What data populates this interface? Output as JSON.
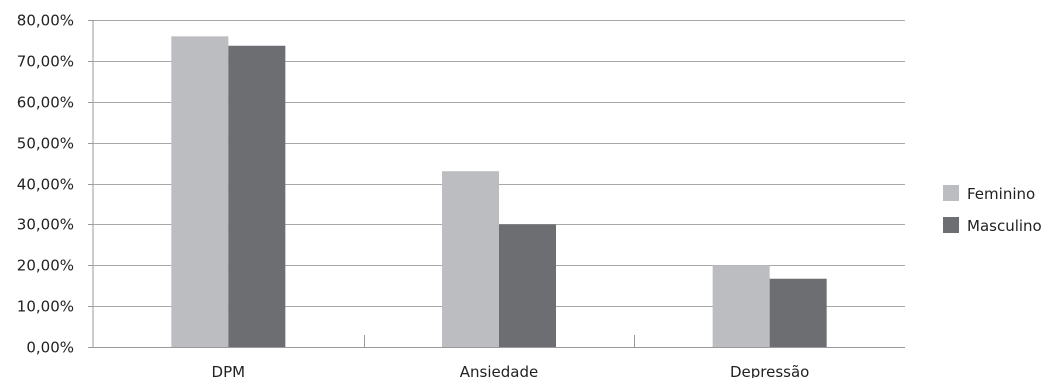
{
  "chart_data": {
    "type": "bar",
    "title": "",
    "xlabel": "",
    "ylabel": "",
    "categories": [
      "DPM",
      "Ansiedade",
      "Depressão"
    ],
    "series": [
      {
        "name": "Feminino",
        "color": "#bcbdc1",
        "values": [
          76.0,
          43.0,
          20.0
        ]
      },
      {
        "name": "Masculino",
        "color": "#6d6e72",
        "values": [
          73.7,
          30.0,
          16.7
        ]
      }
    ],
    "ylim": [
      0,
      80
    ],
    "yticks": [
      0,
      10,
      20,
      30,
      40,
      50,
      60,
      70,
      80
    ],
    "ytick_labels": [
      "0,00%",
      "10,00%",
      "20,00%",
      "30,00%",
      "40,00%",
      "50,00%",
      "60,00%",
      "70,00%",
      "80,00%"
    ],
    "grid": true,
    "legend_position": "right"
  }
}
